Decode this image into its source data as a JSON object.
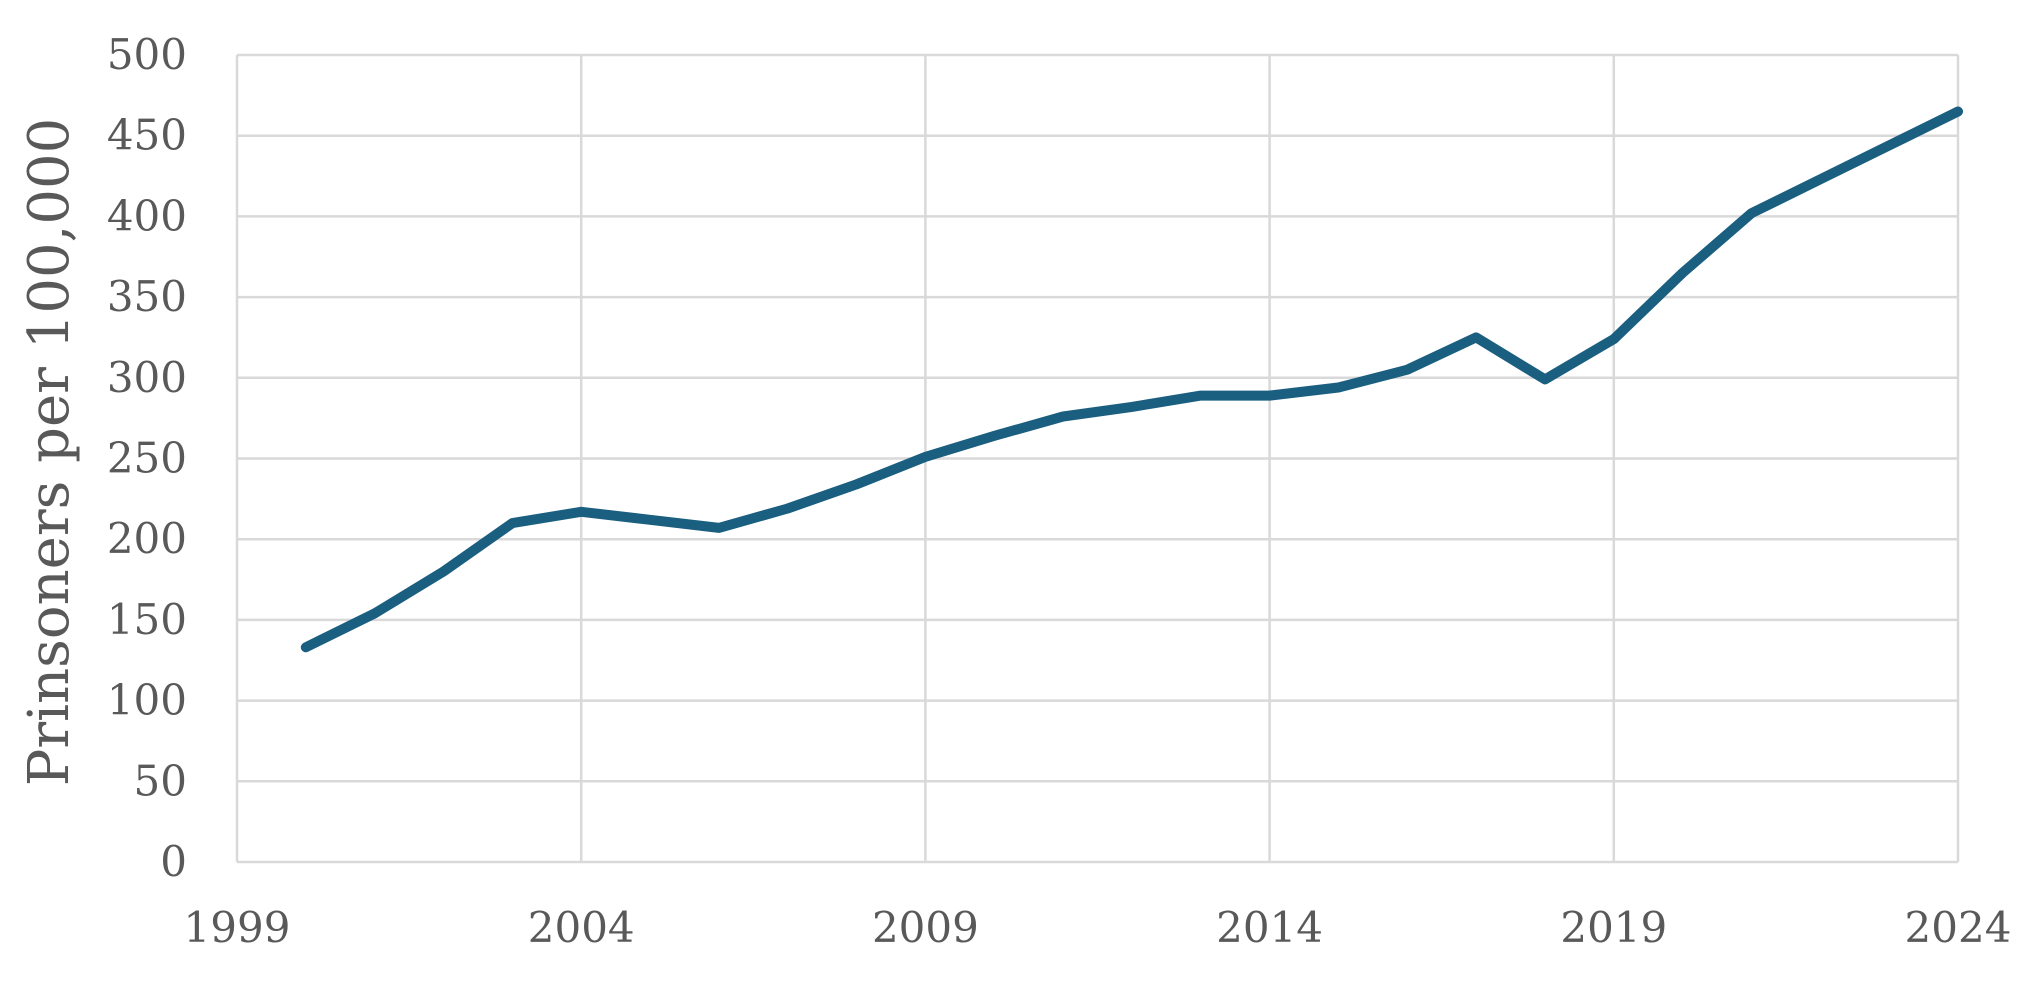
{
  "chart_data": {
    "type": "line",
    "title": "",
    "xlabel": "",
    "ylabel": "Prinsoners per 100,000",
    "xlim": [
      1999,
      2024
    ],
    "ylim": [
      0,
      500
    ],
    "x_ticks": [
      "1999",
      "2004",
      "2009",
      "2014",
      "2019",
      "2024"
    ],
    "y_ticks": [
      "0",
      "50",
      "100",
      "150",
      "200",
      "250",
      "300",
      "350",
      "400",
      "450",
      "500"
    ],
    "grid": true,
    "legend": "none",
    "line_color": "#1a5e80",
    "grid_color": "#d9d9d9",
    "series": [
      {
        "x": [
          2000,
          2001,
          2002,
          2003,
          2004,
          2005,
          2006,
          2007,
          2008,
          2009,
          2010,
          2011,
          2012,
          2013,
          2014,
          2015,
          2016,
          2017,
          2018,
          2019,
          2020,
          2021,
          2022,
          2023,
          2024
        ],
        "values": [
          133,
          154,
          180,
          210,
          217,
          212,
          207,
          219,
          234,
          251,
          264,
          276,
          282,
          289,
          289,
          294,
          305,
          325,
          299,
          324,
          365,
          402,
          423,
          444,
          465
        ]
      }
    ]
  }
}
